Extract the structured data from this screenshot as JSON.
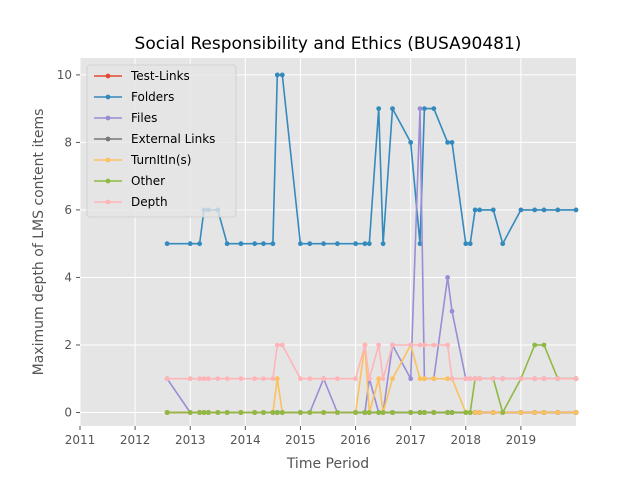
{
  "chart_data": {
    "type": "line",
    "title": "Social Responsibility and Ethics (BUSA90481)",
    "xlabel": "Time Period",
    "ylabel": "Maximum depth of LMS content items",
    "xlim": [
      2011,
      2020
    ],
    "ylim": [
      -0.4,
      10.5
    ],
    "x_ticks": [
      2011,
      2012,
      2013,
      2014,
      2015,
      2016,
      2017,
      2018,
      2019
    ],
    "y_ticks": [
      0,
      2,
      4,
      6,
      8,
      10
    ],
    "grid": true,
    "legend_position": "top-left",
    "series": [
      {
        "name": "Test-Links",
        "color": "#E24A33",
        "x": [
          2012.58,
          2013.0,
          2013.17,
          2013.25,
          2013.33,
          2013.5,
          2013.67,
          2013.92,
          2014.17,
          2014.33,
          2014.5,
          2014.58,
          2014.67,
          2015.0,
          2015.17,
          2015.42,
          2015.67,
          2016.0,
          2016.17,
          2016.25,
          2016.42,
          2016.5,
          2016.67,
          2017.0,
          2017.17,
          2017.25,
          2017.42,
          2017.67,
          2017.75,
          2018.0,
          2018.08,
          2018.17,
          2018.25,
          2018.5,
          2018.67,
          2019.0,
          2019.25,
          2019.42,
          2019.67,
          2020.0
        ],
        "y": [
          0,
          0,
          0,
          0,
          0,
          0,
          0,
          0,
          0,
          0,
          0,
          0,
          0,
          0,
          0,
          0,
          0,
          0,
          0,
          0,
          0,
          0,
          0,
          0,
          0,
          0,
          0,
          0,
          0,
          0,
          0,
          0,
          0,
          0,
          0,
          0,
          0,
          0,
          0,
          0
        ]
      },
      {
        "name": "Folders",
        "color": "#348ABD",
        "x": [
          2012.58,
          2013.0,
          2013.17,
          2013.25,
          2013.33,
          2013.5,
          2013.67,
          2013.92,
          2014.17,
          2014.33,
          2014.5,
          2014.58,
          2014.67,
          2015.0,
          2015.17,
          2015.42,
          2015.67,
          2016.0,
          2016.17,
          2016.25,
          2016.42,
          2016.5,
          2016.67,
          2017.0,
          2017.17,
          2017.25,
          2017.42,
          2017.67,
          2017.75,
          2018.0,
          2018.08,
          2018.17,
          2018.25,
          2018.5,
          2018.67,
          2019.0,
          2019.25,
          2019.42,
          2019.67,
          2020.0
        ],
        "y": [
          5,
          5,
          5,
          6,
          6,
          6,
          5,
          5,
          5,
          5,
          5,
          10,
          10,
          5,
          5,
          5,
          5,
          5,
          5,
          5,
          9,
          5,
          9,
          8,
          5,
          9,
          9,
          8,
          8,
          5,
          5,
          6,
          6,
          6,
          5,
          6,
          6,
          6,
          6,
          6
        ]
      },
      {
        "name": "Files",
        "color": "#988ED5",
        "x": [
          2012.58,
          2013.0,
          2013.17,
          2013.25,
          2013.33,
          2013.5,
          2013.67,
          2013.92,
          2014.17,
          2014.33,
          2014.5,
          2014.58,
          2014.67,
          2015.0,
          2015.17,
          2015.42,
          2015.67,
          2016.0,
          2016.17,
          2016.25,
          2016.42,
          2016.5,
          2016.67,
          2017.0,
          2017.17,
          2017.25,
          2017.42,
          2017.67,
          2017.75,
          2018.0,
          2018.08,
          2018.17,
          2018.25,
          2018.5,
          2018.67,
          2019.0,
          2019.25,
          2019.42,
          2019.67,
          2020.0
        ],
        "y": [
          1,
          0,
          0,
          0,
          0,
          0,
          0,
          0,
          0,
          0,
          0,
          0,
          0,
          0,
          0,
          1,
          0,
          0,
          0,
          1,
          0,
          0,
          2,
          1,
          9,
          1,
          1,
          4,
          3,
          1,
          1,
          1,
          1,
          1,
          1,
          1,
          1,
          1,
          1,
          1
        ]
      },
      {
        "name": "External Links",
        "color": "#777777",
        "x": [
          2012.58,
          2013.0,
          2013.17,
          2013.25,
          2013.33,
          2013.5,
          2013.67,
          2013.92,
          2014.17,
          2014.33,
          2014.5,
          2014.58,
          2014.67,
          2015.0,
          2015.17,
          2015.42,
          2015.67,
          2016.0,
          2016.17,
          2016.25,
          2016.42,
          2016.5,
          2016.67,
          2017.0,
          2017.17,
          2017.25,
          2017.42,
          2017.67,
          2017.75,
          2018.0,
          2018.08,
          2018.17,
          2018.25,
          2018.5,
          2018.67,
          2019.0,
          2019.25,
          2019.42,
          2019.67,
          2020.0
        ],
        "y": [
          0,
          0,
          0,
          0,
          0,
          0,
          0,
          0,
          0,
          0,
          0,
          0,
          0,
          0,
          0,
          0,
          0,
          0,
          0,
          0,
          0,
          0,
          0,
          0,
          0,
          0,
          0,
          0,
          0,
          0,
          0,
          0,
          0,
          0,
          0,
          0,
          0,
          0,
          0,
          0
        ]
      },
      {
        "name": "TurnItIn(s)",
        "color": "#FBC15E",
        "x": [
          2012.58,
          2013.0,
          2013.17,
          2013.25,
          2013.33,
          2013.5,
          2013.67,
          2013.92,
          2014.17,
          2014.33,
          2014.5,
          2014.58,
          2014.67,
          2015.0,
          2015.17,
          2015.42,
          2015.67,
          2016.0,
          2016.17,
          2016.25,
          2016.42,
          2016.5,
          2016.67,
          2017.0,
          2017.17,
          2017.25,
          2017.42,
          2017.67,
          2017.75,
          2018.0,
          2018.08,
          2018.17,
          2018.25,
          2018.5,
          2018.67,
          2019.0,
          2019.25,
          2019.42,
          2019.67,
          2020.0
        ],
        "y": [
          0,
          0,
          0,
          0,
          0,
          0,
          0,
          0,
          0,
          0,
          0,
          1,
          0,
          0,
          0,
          0,
          0,
          0,
          2,
          0,
          1,
          0,
          1,
          2,
          1,
          1,
          1,
          1,
          1,
          0,
          0,
          0,
          0,
          0,
          0,
          0,
          0,
          0,
          0,
          0
        ]
      },
      {
        "name": "Other",
        "color": "#8EBA42",
        "x": [
          2012.58,
          2013.0,
          2013.17,
          2013.25,
          2013.33,
          2013.5,
          2013.67,
          2013.92,
          2014.17,
          2014.33,
          2014.5,
          2014.58,
          2014.67,
          2015.0,
          2015.17,
          2015.42,
          2015.67,
          2016.0,
          2016.17,
          2016.25,
          2016.42,
          2016.5,
          2016.67,
          2017.0,
          2017.17,
          2017.25,
          2017.42,
          2017.67,
          2017.75,
          2018.0,
          2018.08,
          2018.17,
          2018.25,
          2018.5,
          2018.67,
          2019.0,
          2019.25,
          2019.42,
          2019.67,
          2020.0
        ],
        "y": [
          0,
          0,
          0,
          0,
          0,
          0,
          0,
          0,
          0,
          0,
          0,
          0,
          0,
          0,
          0,
          0,
          0,
          0,
          0,
          0,
          0,
          0,
          0,
          0,
          0,
          0,
          0,
          0,
          0,
          0,
          0,
          1,
          1,
          1,
          0,
          1,
          2,
          2,
          1,
          1
        ]
      },
      {
        "name": "Depth",
        "color": "#FFB5B8",
        "x": [
          2012.58,
          2013.0,
          2013.17,
          2013.25,
          2013.33,
          2013.5,
          2013.67,
          2013.92,
          2014.17,
          2014.33,
          2014.5,
          2014.58,
          2014.67,
          2015.0,
          2015.17,
          2015.42,
          2015.67,
          2016.0,
          2016.17,
          2016.25,
          2016.42,
          2016.5,
          2016.67,
          2017.0,
          2017.17,
          2017.25,
          2017.42,
          2017.67,
          2017.75,
          2018.0,
          2018.08,
          2018.17,
          2018.25,
          2018.5,
          2018.67,
          2019.0,
          2019.25,
          2019.42,
          2019.67,
          2020.0
        ],
        "y": [
          1,
          1,
          1,
          1,
          1,
          1,
          1,
          1,
          1,
          1,
          1,
          2,
          2,
          1,
          1,
          1,
          1,
          1,
          2,
          1,
          2,
          1,
          2,
          2,
          2,
          2,
          2,
          2,
          1,
          1,
          1,
          1,
          1,
          1,
          1,
          1,
          1,
          1,
          1,
          1
        ]
      }
    ]
  }
}
